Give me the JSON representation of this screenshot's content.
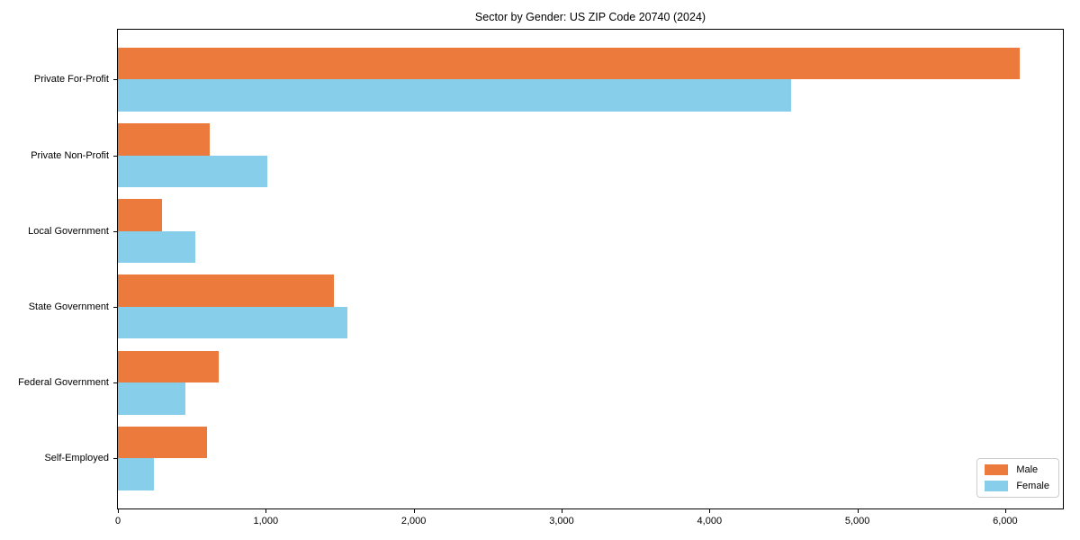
{
  "chart_data": {
    "type": "bar",
    "orientation": "horizontal",
    "title": "Sector by Gender: US ZIP Code 20740 (2024)",
    "categories": [
      "Private For-Profit",
      "Private Non-Profit",
      "Local Government",
      "State Government",
      "Federal Government",
      "Self-Employed"
    ],
    "series": [
      {
        "name": "Male",
        "color": "#EB7A3C",
        "values": [
          6100,
          620,
          295,
          1460,
          680,
          600
        ]
      },
      {
        "name": "Female",
        "color": "#87CEEB",
        "values": [
          4550,
          1010,
          525,
          1550,
          455,
          245
        ]
      }
    ],
    "xlim": [
      0,
      6390
    ],
    "xtick_values": [
      0,
      1000,
      2000,
      3000,
      4000,
      5000,
      6000
    ],
    "xtick_labels": [
      "0",
      "1,000",
      "2,000",
      "3,000",
      "4,000",
      "5,000",
      "6,000"
    ],
    "legend": {
      "position": "lower right",
      "entries": [
        "Male",
        "Female"
      ]
    },
    "grid": false,
    "colors": {
      "male": "#EB7A3C",
      "female": "#87CEEB",
      "axis": "#000000",
      "text": "#000000",
      "legend_border": "#cccccc",
      "background": "#ffffff"
    }
  }
}
